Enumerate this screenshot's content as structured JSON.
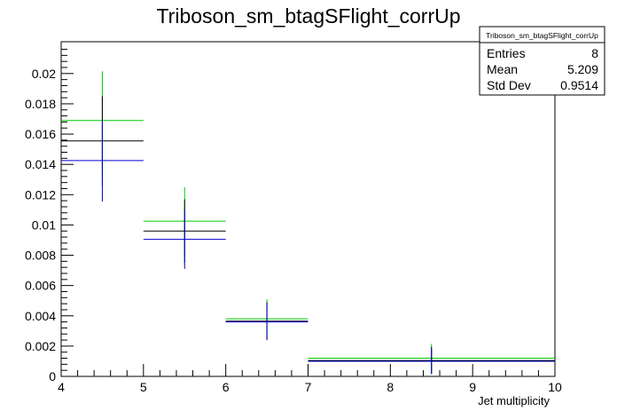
{
  "chart_data": {
    "type": "histogram",
    "title": "Triboson_sm_btagSFlight_corrUp",
    "xlabel": "Jet multiplicity",
    "ylabel": "",
    "xlim": [
      4,
      10
    ],
    "ylim": [
      0,
      0.0221
    ],
    "x_tick_labels": [
      "4",
      "5",
      "6",
      "7",
      "8",
      "9",
      "10"
    ],
    "y_tick_labels": [
      "0",
      "0.002",
      "0.004",
      "0.006",
      "0.008",
      "0.01",
      "0.012",
      "0.014",
      "0.016",
      "0.018",
      "0.02"
    ],
    "stats_box": {
      "name": "Triboson_sm_btagSFlight_corrUp",
      "rows": [
        {
          "label": "Entries",
          "value": "8"
        },
        {
          "label": "Mean",
          "value": "5.209"
        },
        {
          "label": "Std Dev",
          "value": "0.9514"
        }
      ]
    },
    "series": [
      {
        "color": "#00cc00",
        "bins": [
          {
            "x_low": 4,
            "x_high": 5,
            "y": 0.0169,
            "err": 0.00325
          },
          {
            "x_low": 5,
            "x_high": 6,
            "y": 0.01025,
            "err": 0.00225
          },
          {
            "x_low": 6,
            "x_high": 7,
            "y": 0.0038,
            "err": 0.0013
          },
          {
            "x_low": 7,
            "x_high": 10,
            "y": 0.0012,
            "err": 0.00095
          }
        ]
      },
      {
        "color": "#000000",
        "bins": [
          {
            "x_low": 4,
            "x_high": 5,
            "y": 0.01555,
            "err": 0.00295
          },
          {
            "x_low": 5,
            "x_high": 6,
            "y": 0.0096,
            "err": 0.0021
          },
          {
            "x_low": 6,
            "x_high": 7,
            "y": 0.00365,
            "err": 0.00125
          },
          {
            "x_low": 7,
            "x_high": 10,
            "y": 0.00105,
            "err": 0.0009
          }
        ]
      },
      {
        "color": "#0000cc",
        "bins": [
          {
            "x_low": 4,
            "x_high": 5,
            "y": 0.01425,
            "err": 0.0027
          },
          {
            "x_low": 5,
            "x_high": 6,
            "y": 0.00905,
            "err": 0.00195
          },
          {
            "x_low": 6,
            "x_high": 7,
            "y": 0.0036,
            "err": 0.0012
          },
          {
            "x_low": 7,
            "x_high": 10,
            "y": 0.001,
            "err": 0.00085
          }
        ]
      }
    ]
  }
}
